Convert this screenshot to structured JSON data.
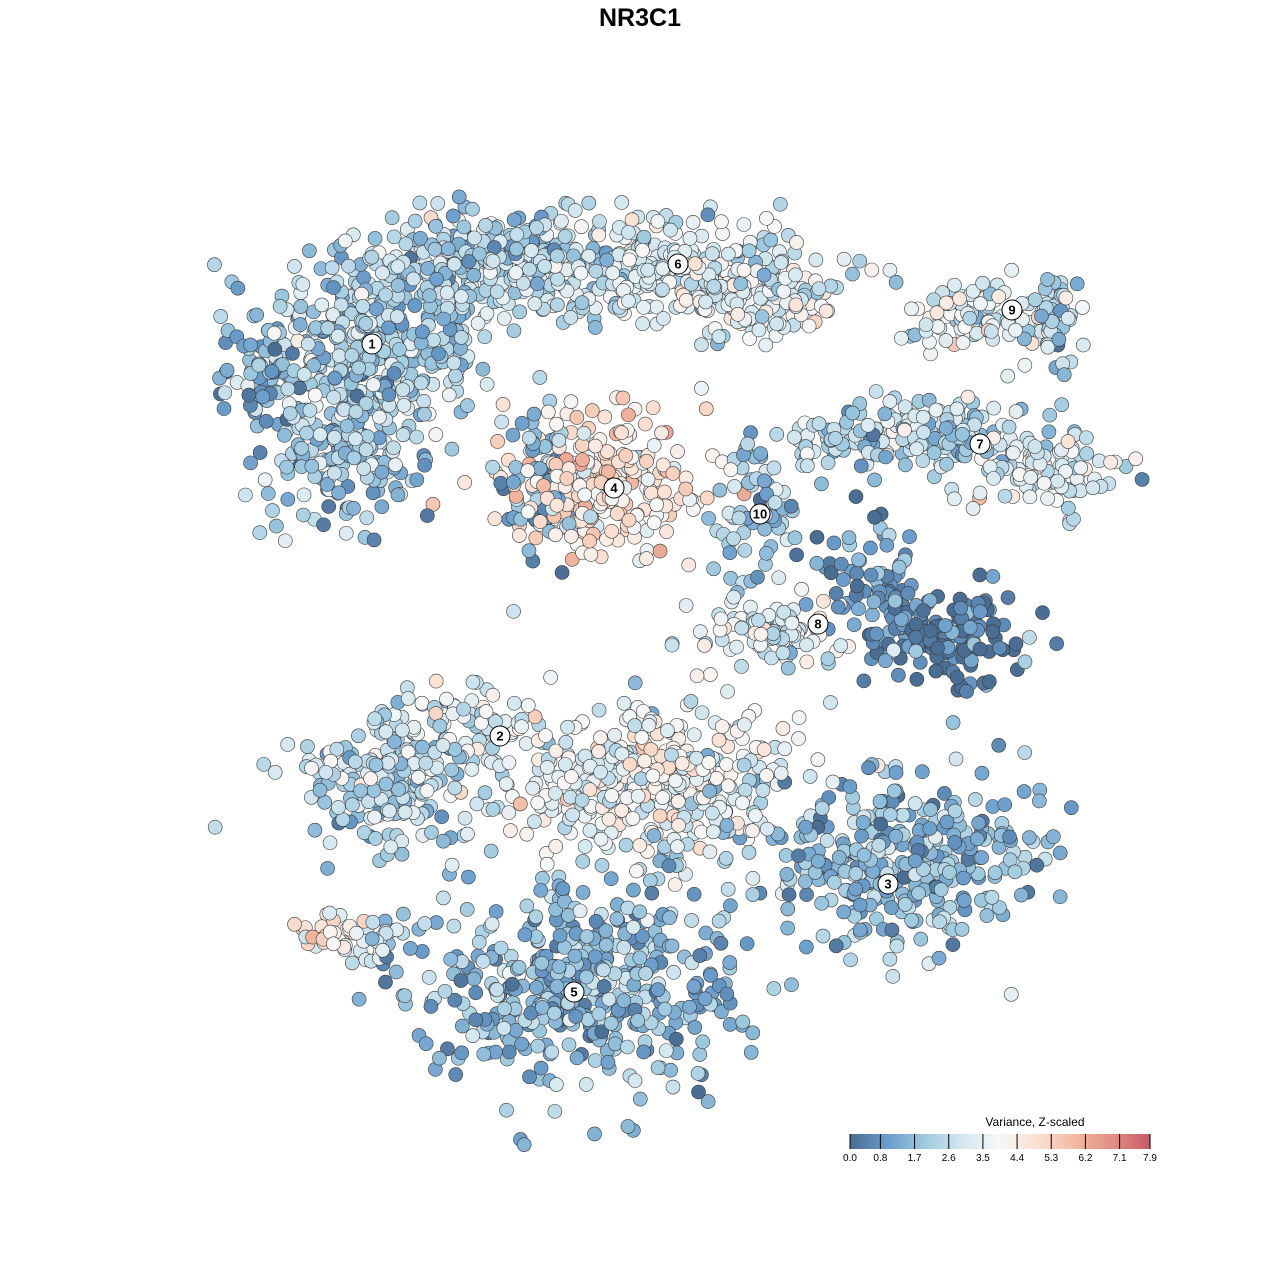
{
  "chart_data": {
    "type": "scatter",
    "title": "NR3C1",
    "xlabel": "",
    "ylabel": "",
    "xlim": [
      -12,
      12
    ],
    "ylim": [
      -12,
      12
    ],
    "grid": false,
    "legend": {
      "title": "Variance, Z-scaled",
      "placement": "bottom-right",
      "ticks": [
        "0.0",
        "0.8",
        "1.7",
        "2.6",
        "3.5",
        "4.4",
        "5.3",
        "6.2",
        "7.1",
        "7.9"
      ],
      "range": [
        0,
        7.9
      ],
      "colors": [
        "#4a6d94",
        "#6a9ccb",
        "#9fcae0",
        "#d4e7f0",
        "#f7f7f7",
        "#fbe0d2",
        "#f3b9a0",
        "#e08e82",
        "#c85a68"
      ]
    },
    "clusters": [
      {
        "label": "1",
        "x": -6.7,
        "y": 7.4
      },
      {
        "label": "2",
        "x": -3.5,
        "y": -2.4
      },
      {
        "label": "3",
        "x": 6.2,
        "y": -6.1
      },
      {
        "label": "4",
        "x": -0.65,
        "y": 3.8
      },
      {
        "label": "5",
        "x": -1.65,
        "y": -8.8
      },
      {
        "label": "6",
        "x": 0.95,
        "y": 9.4
      },
      {
        "label": "7",
        "x": 8.5,
        "y": 4.9
      },
      {
        "label": "8",
        "x": 4.45,
        "y": 0.4
      },
      {
        "label": "9",
        "x": 9.3,
        "y": 8.25
      },
      {
        "label": "10",
        "x": 3.0,
        "y": 3.15
      }
    ],
    "point_groups": [
      {
        "cluster": "1",
        "x": -6.5,
        "y": 7.5,
        "sx": 1.8,
        "sy": 1.6,
        "n": 350,
        "value": 2.2
      },
      {
        "cluster": "1",
        "x": -7.5,
        "y": 5.0,
        "sx": 1.2,
        "sy": 1.5,
        "n": 200,
        "value": 2.0
      },
      {
        "cluster": "1",
        "x": -3.5,
        "y": 9.5,
        "sx": 1.8,
        "sy": 0.8,
        "n": 250,
        "value": 2.3
      },
      {
        "cluster": "1",
        "x": -9.5,
        "y": 6.8,
        "sx": 0.6,
        "sy": 1.0,
        "n": 60,
        "value": 1.8
      },
      {
        "cluster": "6",
        "x": 0.5,
        "y": 9.3,
        "sx": 2.5,
        "sy": 0.8,
        "n": 300,
        "value": 3.0
      },
      {
        "cluster": "6",
        "x": 3.0,
        "y": 8.5,
        "sx": 1.2,
        "sy": 0.6,
        "n": 100,
        "value": 3.4
      },
      {
        "cluster": "9",
        "x": 8.5,
        "y": 8.2,
        "sx": 1.3,
        "sy": 0.5,
        "n": 100,
        "value": 3.2
      },
      {
        "cluster": "9",
        "x": 10.3,
        "y": 7.9,
        "sx": 0.5,
        "sy": 1.0,
        "n": 50,
        "value": 2.2
      },
      {
        "cluster": "7",
        "x": 7.5,
        "y": 5.2,
        "sx": 1.6,
        "sy": 0.6,
        "n": 120,
        "value": 2.4
      },
      {
        "cluster": "7",
        "x": 10.3,
        "y": 4.2,
        "sx": 1.2,
        "sy": 0.7,
        "n": 100,
        "value": 3.0
      },
      {
        "cluster": "7",
        "x": 5.5,
        "y": 5.0,
        "sx": 1.2,
        "sy": 0.5,
        "n": 60,
        "value": 2.6
      },
      {
        "cluster": "4",
        "x": -0.8,
        "y": 3.8,
        "sx": 1.6,
        "sy": 1.1,
        "n": 250,
        "value": 4.6
      },
      {
        "cluster": "4",
        "x": -2.6,
        "y": 3.6,
        "sx": 0.6,
        "sy": 1.2,
        "n": 60,
        "value": 1.5
      },
      {
        "cluster": "10",
        "x": 3.0,
        "y": 3.3,
        "sx": 0.8,
        "sy": 1.3,
        "n": 80,
        "value": 1.9
      },
      {
        "cluster": "8",
        "x": 7.5,
        "y": 0.2,
        "sx": 1.4,
        "sy": 0.7,
        "n": 150,
        "value": 0.3
      },
      {
        "cluster": "8",
        "x": 5.8,
        "y": 1.5,
        "sx": 0.7,
        "sy": 1.0,
        "n": 60,
        "value": 1.0
      },
      {
        "cluster": "8",
        "x": 3.3,
        "y": 0.2,
        "sx": 1.5,
        "sy": 0.5,
        "n": 80,
        "value": 3.3
      },
      {
        "cluster": "2",
        "x": -6.0,
        "y": -3.5,
        "sx": 1.6,
        "sy": 1.0,
        "n": 200,
        "value": 2.4
      },
      {
        "cluster": "2",
        "x": -4.5,
        "y": -2.0,
        "sx": 1.2,
        "sy": 0.5,
        "n": 60,
        "value": 2.8
      },
      {
        "cluster": "2",
        "x": 0.2,
        "y": -3.5,
        "sx": 2.2,
        "sy": 1.3,
        "n": 400,
        "value": 3.6
      },
      {
        "cluster": "3",
        "x": 6.5,
        "y": -5.5,
        "sx": 2.3,
        "sy": 1.3,
        "n": 350,
        "value": 1.7
      },
      {
        "cluster": "5",
        "x": -1.5,
        "y": -8.6,
        "sx": 2.5,
        "sy": 1.6,
        "n": 450,
        "value": 1.6
      },
      {
        "cluster": "2",
        "x": -7.8,
        "y": -7.2,
        "sx": 0.6,
        "sy": 0.3,
        "n": 20,
        "value": 4.8
      },
      {
        "cluster": "2",
        "x": -6.9,
        "y": -7.6,
        "sx": 0.5,
        "sy": 0.4,
        "n": 25,
        "value": 3.0
      }
    ]
  }
}
